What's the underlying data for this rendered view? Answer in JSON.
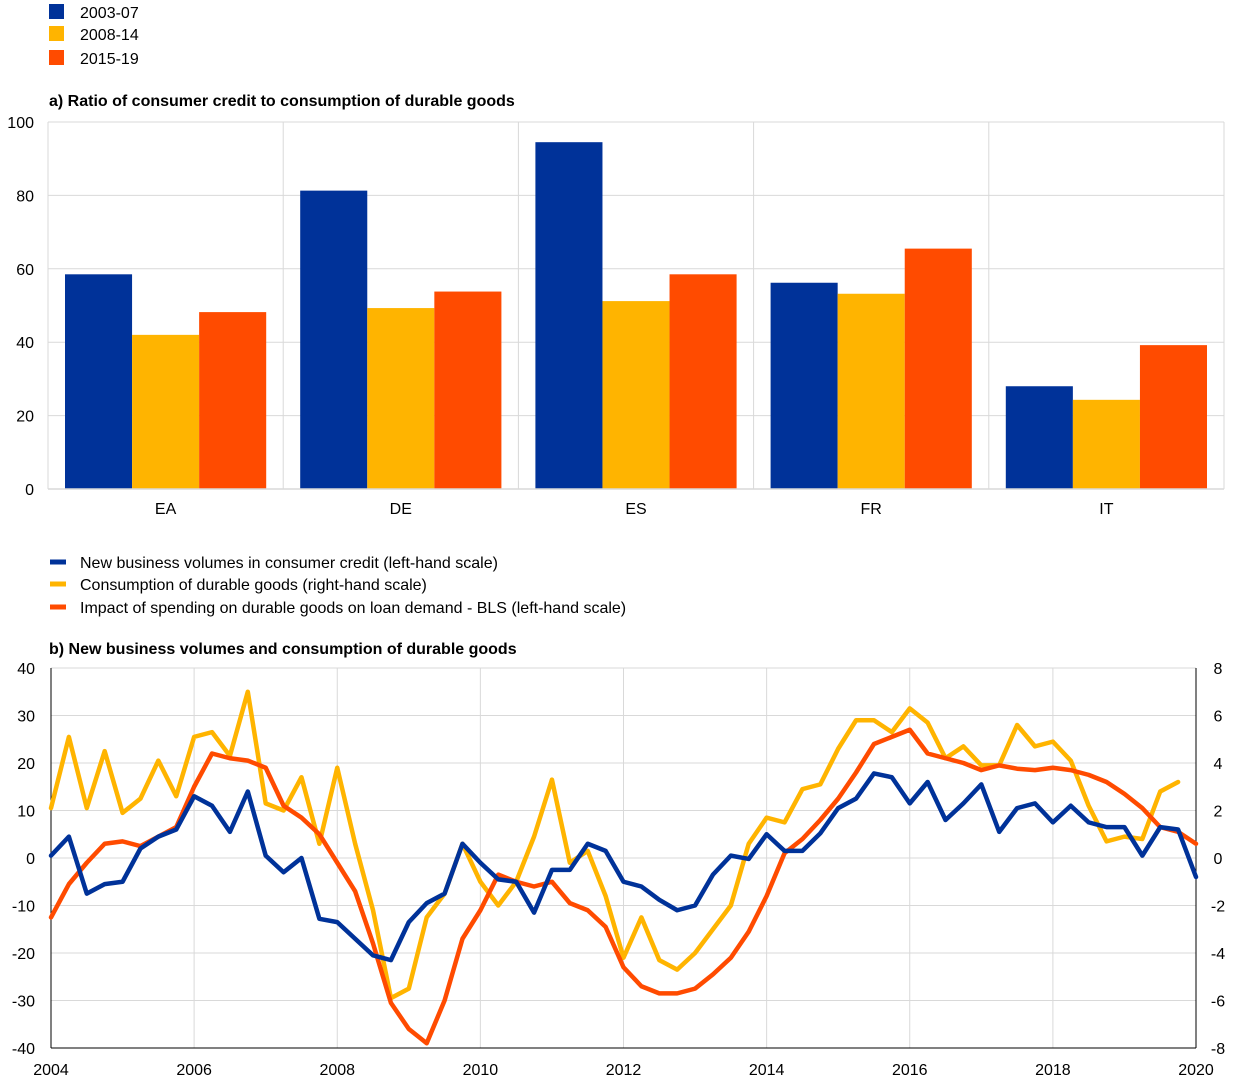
{
  "chart_data": [
    {
      "type": "bar",
      "title": "a) Ratio of consumer credit to consumption of durable goods",
      "categories": [
        "EA",
        "DE",
        "ES",
        "FR",
        "IT"
      ],
      "series": [
        {
          "name": "2003-07",
          "color": "#003299",
          "values": [
            58.5,
            81.3,
            94.5,
            56.2,
            28.0
          ]
        },
        {
          "name": "2008-14",
          "color": "#FFB400",
          "values": [
            42.0,
            49.3,
            51.2,
            53.2,
            24.3
          ]
        },
        {
          "name": "2015-19",
          "color": "#FF4B00",
          "values": [
            48.2,
            53.8,
            58.5,
            65.5,
            39.2
          ]
        }
      ],
      "ylim": [
        0,
        100
      ],
      "yticks": [
        0,
        20,
        40,
        60,
        80,
        100
      ],
      "legend": "top-left",
      "grid": true
    },
    {
      "type": "line",
      "title": "b) New business volumes and consumption of durable goods",
      "x_start": 2004.0,
      "x_step": 0.25,
      "xlim": [
        2004,
        2020
      ],
      "xticks": [
        2004,
        2006,
        2008,
        2010,
        2012,
        2014,
        2016,
        2018,
        2020
      ],
      "ylim_left": [
        -40,
        40
      ],
      "yticks_left": [
        -40,
        -30,
        -20,
        -10,
        0,
        10,
        20,
        30,
        40
      ],
      "ylim_right": [
        -8,
        8
      ],
      "yticks_right": [
        -8,
        -6,
        -4,
        -2,
        0,
        2,
        4,
        6,
        8
      ],
      "legend": "top-left",
      "grid": true,
      "series": [
        {
          "name": "New business volumes in consumer credit (left-hand scale)",
          "color": "#003299",
          "axis": "left",
          "values": [
            0.5,
            4.5,
            -7.5,
            -5.5,
            -5.0,
            2.0,
            4.5,
            6.0,
            13.0,
            11.0,
            5.5,
            14.0,
            0.5,
            -3.0,
            0.0,
            -12.8,
            -13.5,
            -17.0,
            -20.5,
            -21.5,
            -13.5,
            -9.5,
            -7.5,
            3.0,
            -1.0,
            -4.5,
            -5.0,
            -11.5,
            -2.5,
            -2.5,
            3.0,
            1.5,
            -5.0,
            -6.0,
            -8.8,
            -11.0,
            -10.0,
            -3.5,
            0.5,
            -0.2,
            5.0,
            1.5,
            1.5,
            5.2,
            10.5,
            12.5,
            17.8,
            17.0,
            11.5,
            16.0,
            8.0,
            11.5,
            15.5,
            5.5,
            10.5,
            11.5,
            7.5,
            11.0,
            7.5,
            6.5,
            6.5,
            0.5,
            6.5,
            6.0,
            -4.0
          ]
        },
        {
          "name": "Consumption of durable goods (right-hand scale)",
          "color": "#FFB400",
          "axis": "right",
          "values": [
            2.1,
            5.1,
            2.1,
            4.5,
            1.9,
            2.5,
            4.1,
            2.6,
            5.1,
            5.3,
            4.3,
            7.0,
            2.3,
            2.0,
            3.4,
            0.6,
            3.8,
            0.6,
            -2.2,
            -5.9,
            -5.5,
            -2.5,
            -1.5,
            0.6,
            -1.0,
            -2.0,
            -1.0,
            0.9,
            3.3,
            -0.2,
            0.3,
            -1.6,
            -4.2,
            -2.5,
            -4.3,
            -4.7,
            -4.0,
            -3.0,
            -2.0,
            0.6,
            1.7,
            1.5,
            2.9,
            3.1,
            4.6,
            5.8,
            5.8,
            5.3,
            6.3,
            5.7,
            4.2,
            4.7,
            3.9,
            3.9,
            5.6,
            4.7,
            4.9,
            4.1,
            2.2,
            0.7,
            0.9,
            0.8,
            2.8,
            3.2
          ]
        },
        {
          "name": "Impact of spending on durable goods on loan demand - BLS (left-hand scale)",
          "color": "#FF4B00",
          "axis": "left",
          "values": [
            -12.5,
            -5.5,
            -1.0,
            3.0,
            3.5,
            2.5,
            4.5,
            6.5,
            15.0,
            22.0,
            21.0,
            20.5,
            19.0,
            11.0,
            8.5,
            5.0,
            -1.0,
            -7.0,
            -18.0,
            -30.5,
            -36.0,
            -39.0,
            -30.0,
            -17.0,
            -11.0,
            -3.5,
            -5.0,
            -6.0,
            -5.0,
            -9.5,
            -11.0,
            -14.5,
            -23.0,
            -27.0,
            -28.5,
            -28.5,
            -27.5,
            -24.5,
            -21.0,
            -15.5,
            -8.0,
            1.0,
            4.0,
            8.0,
            12.5,
            18.0,
            24.0,
            25.5,
            27.0,
            22.0,
            21.0,
            20.0,
            18.5,
            19.5,
            18.8,
            18.5,
            19.0,
            18.5,
            17.5,
            16.0,
            13.5,
            10.5,
            6.5,
            5.5,
            3.0
          ]
        }
      ]
    }
  ]
}
